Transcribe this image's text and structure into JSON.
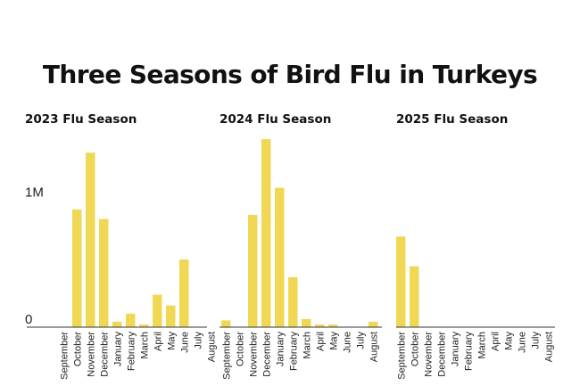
{
  "title": "Three Seasons of Bird Flu in Turkeys",
  "chart_data": {
    "type": "bar",
    "bar_color": "#f0d855",
    "axis_color": "#333333",
    "y_ticks": [
      {
        "value": 0,
        "label": "0"
      },
      {
        "value": 1000000,
        "label": "1M"
      }
    ],
    "ylim": [
      0,
      1450000
    ],
    "categories": [
      "September",
      "October",
      "November",
      "December",
      "January",
      "February",
      "March",
      "April",
      "May",
      "June",
      "July",
      "August"
    ],
    "series": [
      {
        "name": "2023 Flu Season",
        "values": [
          0,
          870000,
          1290000,
          800000,
          40000,
          100000,
          20000,
          240000,
          160000,
          500000,
          0,
          0
        ]
      },
      {
        "name": "2024 Flu Season",
        "values": [
          50000,
          0,
          830000,
          1390000,
          1030000,
          370000,
          60000,
          20000,
          20000,
          0,
          0,
          40000
        ]
      },
      {
        "name": "2025 Flu Season",
        "values": [
          670000,
          450000,
          0,
          0,
          0,
          0,
          0,
          0,
          0,
          0,
          0,
          0
        ]
      }
    ]
  }
}
